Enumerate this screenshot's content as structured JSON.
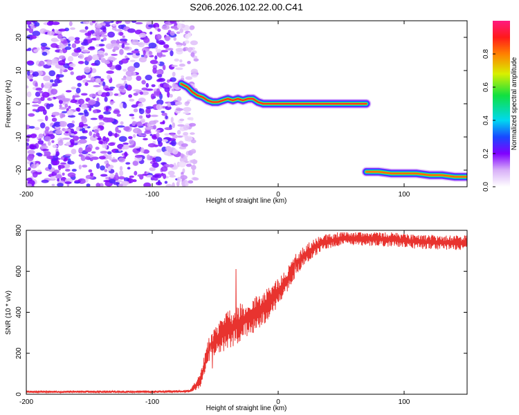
{
  "figure_title": "S206.2026.102.22.00.C41",
  "chart_data": [
    {
      "type": "heatmap",
      "title": "S206.2026.102.22.00.C41",
      "xlabel": "Height of straight line (km)",
      "ylabel": "Frequency (Hz)",
      "xlim": [
        -200,
        150
      ],
      "ylim": [
        -25,
        25
      ],
      "xticks": [
        -200,
        -100,
        0,
        100
      ],
      "xtick_labels": [
        "-200",
        "-100",
        "0",
        "100"
      ],
      "yticks": [
        -20,
        -10,
        0,
        10,
        20
      ],
      "ytick_labels": [
        "-20",
        "-10",
        "0",
        "10",
        "20"
      ],
      "colorbar": {
        "label": "Normalized spectral amplitude",
        "range": [
          0,
          1
        ],
        "ticks": [
          0.0,
          0.2,
          0.4,
          0.6,
          0.8
        ],
        "tick_labels": [
          "0.0",
          "0.2",
          "0.4",
          "0.6",
          "0.8"
        ]
      },
      "noise_region": {
        "x": [
          -200,
          -70
        ],
        "y": [
          -25,
          25
        ],
        "amplitude": [
          0.05,
          0.25
        ]
      },
      "ridges": [
        {
          "name": "ridge-1",
          "points": [
            [
              -77,
              6
            ],
            [
              -72,
              5
            ],
            [
              -68,
              3.5
            ],
            [
              -64,
              2.5
            ],
            [
              -60,
              2
            ],
            [
              -56,
              1
            ],
            [
              -52,
              0.5
            ],
            [
              -48,
              0.5
            ],
            [
              -44,
              1
            ],
            [
              -40,
              1.5
            ],
            [
              -36,
              1
            ],
            [
              -32,
              1.5
            ],
            [
              -28,
              1
            ],
            [
              -24,
              1.5
            ],
            [
              -20,
              1.5
            ],
            [
              -16,
              0.5
            ],
            [
              -12,
              0
            ],
            [
              -5,
              0
            ],
            [
              10,
              0
            ],
            [
              30,
              0
            ],
            [
              50,
              0
            ],
            [
              70,
              0
            ]
          ],
          "peak_amplitude": 1.0
        },
        {
          "name": "ridge-2",
          "points": [
            [
              70,
              -20.5
            ],
            [
              80,
              -20.5
            ],
            [
              90,
              -21
            ],
            [
              100,
              -21
            ],
            [
              110,
              -21
            ],
            [
              120,
              -21.5
            ],
            [
              130,
              -21.5
            ],
            [
              140,
              -22
            ],
            [
              150,
              -22
            ]
          ],
          "peak_amplitude": 0.9
        }
      ]
    },
    {
      "type": "line",
      "xlabel": "Height of straight line (km)",
      "ylabel": "SNR (10 * v/v)",
      "xlim": [
        -200,
        150
      ],
      "ylim": [
        0,
        800
      ],
      "xticks": [
        -200,
        -100,
        0,
        100
      ],
      "xtick_labels": [
        "-200",
        "-100",
        "0",
        "100"
      ],
      "yticks": [
        0,
        200,
        400,
        600,
        800
      ],
      "ytick_labels": [
        "0",
        "200",
        "400",
        "600",
        "800"
      ],
      "series": [
        {
          "name": "SNR",
          "color": "#e8332f",
          "envelope": [
            [
              -200,
              12
            ],
            [
              -100,
              12
            ],
            [
              -70,
              15
            ],
            [
              -62,
              60
            ],
            [
              -55,
              220
            ],
            [
              -45,
              290
            ],
            [
              -35,
              330
            ],
            [
              -25,
              370
            ],
            [
              -15,
              400
            ],
            [
              -5,
              460
            ],
            [
              5,
              540
            ],
            [
              15,
              640
            ],
            [
              25,
              700
            ],
            [
              35,
              740
            ],
            [
              50,
              760
            ],
            [
              70,
              760
            ],
            [
              90,
              755
            ],
            [
              110,
              745
            ],
            [
              130,
              740
            ],
            [
              150,
              740
            ]
          ],
          "spread": [
            [
              -200,
              10
            ],
            [
              -70,
              10
            ],
            [
              -60,
              80
            ],
            [
              -40,
              160
            ],
            [
              -20,
              150
            ],
            [
              0,
              120
            ],
            [
              20,
              80
            ],
            [
              40,
              60
            ],
            [
              150,
              60
            ]
          ]
        }
      ]
    }
  ]
}
